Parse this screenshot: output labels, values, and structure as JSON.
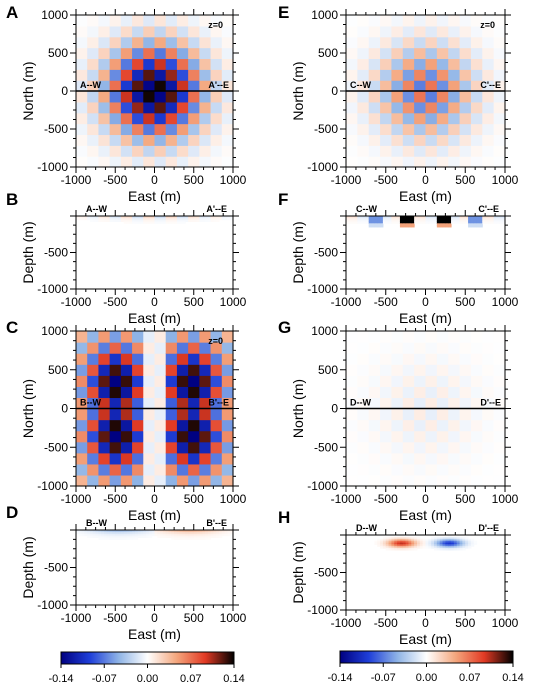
{
  "colorbar": {
    "ticks": [
      "-0.14",
      "-0.07",
      "0.00",
      "0.07",
      "0.14"
    ],
    "min": -0.14,
    "max": 0.14,
    "colormap": [
      "#000080",
      "#1f3fd9",
      "#8fb4e6",
      "#ffffff",
      "#f4a77e",
      "#e23a24",
      "#000000"
    ]
  },
  "chart_data": [
    {
      "panel": "A",
      "type": "heatmap",
      "view": "plan",
      "xlabel": "East (m)",
      "ylabel": "North (m)",
      "xlim": [
        -1000,
        1000
      ],
      "ylim": [
        -1000,
        1000
      ],
      "xticks": [
        "-1000",
        "-500",
        "0",
        "500",
        "1000"
      ],
      "yticks": [
        "1000",
        "500",
        "0",
        "-500",
        "-1000"
      ],
      "annotations": [
        "z=0",
        "A--W",
        "A'--E"
      ],
      "pattern": "checkerboard",
      "peak": 0.14
    },
    {
      "panel": "B",
      "type": "heatmap",
      "view": "section",
      "xlabel": "East (m)",
      "ylabel": "Depth (m)",
      "xlim": [
        -1000,
        1000
      ],
      "ylim": [
        -1000,
        0
      ],
      "xticks": [
        "-1000",
        "-500",
        "0",
        "500",
        "1000"
      ],
      "yticks": [
        "-500",
        "-1000"
      ],
      "annotations": [
        "A--W",
        "A'--E"
      ],
      "pattern": "shallow-checker",
      "peak": 0.03
    },
    {
      "panel": "C",
      "type": "heatmap",
      "view": "plan",
      "xlabel": "East (m)",
      "ylabel": "North (m)",
      "xlim": [
        -1000,
        1000
      ],
      "ylim": [
        -1000,
        1000
      ],
      "xticks": [
        "-1000",
        "-500",
        "0",
        "500",
        "1000"
      ],
      "yticks": [
        "1000",
        "500",
        "0",
        "-500",
        "-1000"
      ],
      "annotations": [
        "z=0",
        "B--W",
        "B'--E"
      ],
      "pattern": "antisymmetric-checker",
      "peak": 0.14
    },
    {
      "panel": "D",
      "type": "heatmap",
      "view": "section",
      "xlabel": "East (m)",
      "ylabel": "Depth (m)",
      "xlim": [
        -1000,
        1000
      ],
      "ylim": [
        -1000,
        0
      ],
      "xticks": [
        "-1000",
        "-500",
        "0",
        "500",
        "1000"
      ],
      "yticks": [
        "-500",
        "-1000"
      ],
      "annotations": [
        "B--W",
        "B'--E"
      ],
      "pattern": "shallow-dipole",
      "peak": 0.05
    },
    {
      "panel": "E",
      "type": "heatmap",
      "view": "plan",
      "xlabel": "East (m)",
      "ylabel": "North (m)",
      "xlim": [
        -1000,
        1000
      ],
      "ylim": [
        -1000,
        1000
      ],
      "xticks": [
        "-1000",
        "-500",
        "0",
        "500",
        "1000"
      ],
      "yticks": [
        "1000",
        "500",
        "0",
        "-500",
        "-1000"
      ],
      "annotations": [
        "z=0",
        "C--W",
        "C'--E"
      ],
      "pattern": "checkerboard",
      "peak": 0.07
    },
    {
      "panel": "F",
      "type": "heatmap",
      "view": "section",
      "xlabel": "East (m)",
      "ylabel": "Depth (m)",
      "xlim": [
        -1000,
        1000
      ],
      "ylim": [
        -1000,
        0
      ],
      "xticks": [
        "-1000",
        "-500",
        "0",
        "500",
        "1000"
      ],
      "yticks": [
        "-500",
        "-1000"
      ],
      "annotations": [
        "C--W",
        "C'--E"
      ],
      "pattern": "shallow-blocks",
      "peak": 0.14
    },
    {
      "panel": "G",
      "type": "heatmap",
      "view": "plan",
      "xlabel": "East (m)",
      "ylabel": "North (m)",
      "xlim": [
        -1000,
        1000
      ],
      "ylim": [
        -1000,
        1000
      ],
      "xticks": [
        "-1000",
        "-500",
        "0",
        "500",
        "1000"
      ],
      "yticks": [
        "1000",
        "500",
        "0",
        "-500",
        "-1000"
      ],
      "annotations": [
        "D--W",
        "D'--E"
      ],
      "pattern": "near-zero",
      "peak": 0.01
    },
    {
      "panel": "H",
      "type": "heatmap",
      "view": "section",
      "xlabel": "East (m)",
      "ylabel": "Depth (m)",
      "xlim": [
        -1000,
        1000
      ],
      "ylim": [
        -1000,
        0
      ],
      "xticks": [
        "-1000",
        "-500",
        "0",
        "500",
        "1000"
      ],
      "yticks": [
        "-500",
        "-1000"
      ],
      "annotations": [
        "D--W",
        "D'--E"
      ],
      "pattern": "deep-dipole",
      "peak": 0.1
    }
  ]
}
